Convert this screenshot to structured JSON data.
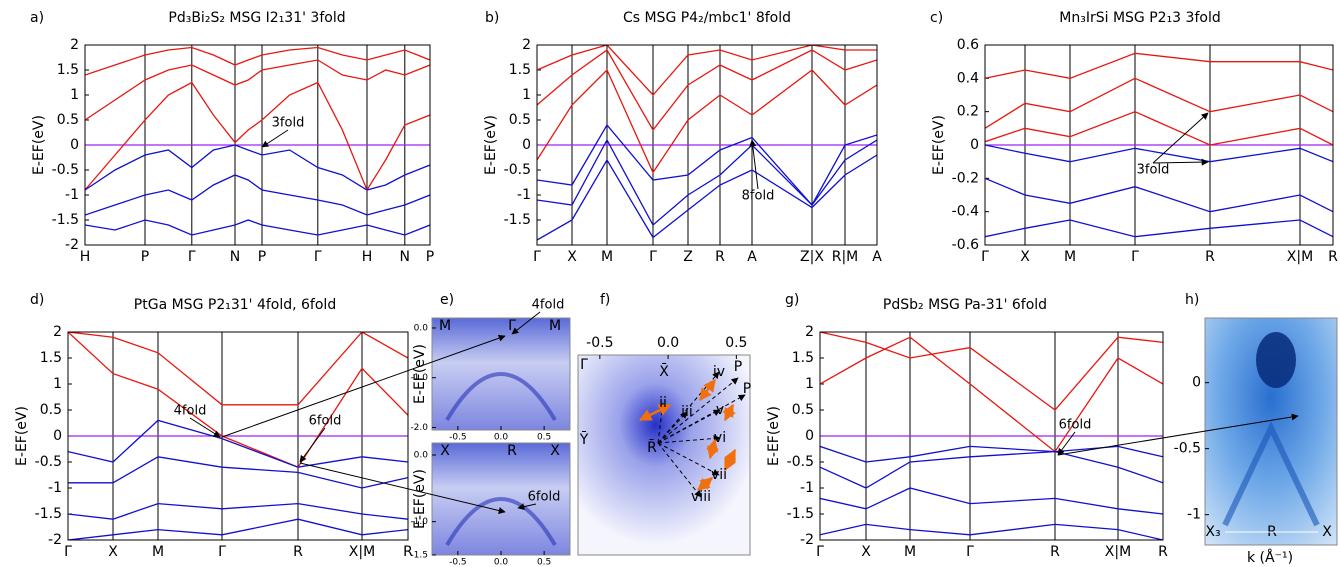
{
  "chart_data": [
    {
      "type": "line",
      "panel": "a)",
      "title": "Pd₃Bi₂S₂ MSG I2₁31' 3fold",
      "ylabel": "E-EF(eV)",
      "x": [
        0,
        0.5,
        1.0,
        1.39,
        1.78,
        2.14,
        2.5,
        2.72,
        2.95,
        3.41,
        3.88,
        4.29,
        4.7,
        5.01,
        5.33,
        5.54,
        5.75
      ],
      "xlim": [
        0,
        5.75
      ],
      "xticks": [
        {
          "value": 0,
          "label": "H"
        },
        {
          "value": 1.0,
          "label": "P"
        },
        {
          "value": 1.78,
          "label": "Γ"
        },
        {
          "value": 2.5,
          "label": "N"
        },
        {
          "value": 2.95,
          "label": "P"
        },
        {
          "value": 3.88,
          "label": "Γ"
        },
        {
          "value": 4.7,
          "label": "H"
        },
        {
          "value": 5.33,
          "label": "N"
        },
        {
          "value": 5.75,
          "label": "P"
        }
      ],
      "ylim": [
        -2,
        2
      ],
      "yticks": [
        -2,
        -1.5,
        -1,
        -0.5,
        0,
        0.5,
        1,
        1.5,
        2
      ],
      "fermi_level": 0,
      "fermi_color": "#a020f0",
      "series": [
        {
          "color": "#e8170f",
          "values": [
            -0.9,
            -0.2,
            0.5,
            1.0,
            1.25,
            0.6,
            0.05,
            0.3,
            0.5,
            1.0,
            1.25,
            0.3,
            -0.9,
            -0.3,
            0.4,
            0.5,
            0.6
          ]
        },
        {
          "color": "#e8170f",
          "values": [
            0.5,
            0.9,
            1.3,
            1.5,
            1.6,
            1.4,
            1.2,
            1.3,
            1.5,
            1.6,
            1.7,
            1.4,
            1.3,
            1.5,
            1.4,
            1.5,
            1.6
          ]
        },
        {
          "color": "#e8170f",
          "values": [
            1.4,
            1.6,
            1.8,
            1.9,
            1.95,
            1.8,
            1.6,
            1.7,
            1.8,
            1.9,
            1.95,
            1.8,
            1.7,
            1.8,
            1.9,
            1.8,
            1.7
          ]
        },
        {
          "color": "#1010d0",
          "values": [
            -0.9,
            -0.5,
            -0.2,
            -0.1,
            -0.45,
            -0.1,
            0,
            -0.1,
            -0.2,
            -0.1,
            -0.45,
            -0.6,
            -0.9,
            -0.8,
            -0.6,
            -0.5,
            -0.4
          ]
        },
        {
          "color": "#1010d0",
          "values": [
            -1.4,
            -1.2,
            -1.0,
            -0.9,
            -1.1,
            -0.8,
            -0.6,
            -0.7,
            -0.9,
            -1.0,
            -1.1,
            -1.2,
            -1.4,
            -1.3,
            -1.2,
            -1.1,
            -1.0
          ]
        },
        {
          "color": "#1010d0",
          "values": [
            -1.6,
            -1.7,
            -1.5,
            -1.6,
            -1.8,
            -1.7,
            -1.6,
            -1.5,
            -1.6,
            -1.7,
            -1.8,
            -1.7,
            -1.6,
            -1.7,
            -1.8,
            -1.7,
            -1.6
          ]
        }
      ],
      "annotations": [
        "3fold"
      ]
    },
    {
      "type": "line",
      "panel": "b)",
      "title": "Cs MSG P4₂/mbc1' 8fold",
      "ylabel": "E-EF(eV)",
      "x": [
        0,
        0.875,
        1.75,
        2.9,
        3.775,
        4.575,
        5.375,
        6.875,
        7.7,
        8.5
      ],
      "xlim": [
        0,
        8.5
      ],
      "xticks": [
        {
          "value": 0,
          "label": "Γ"
        },
        {
          "value": 0.875,
          "label": "X"
        },
        {
          "value": 1.75,
          "label": "M"
        },
        {
          "value": 2.9,
          "label": "Γ"
        },
        {
          "value": 3.775,
          "label": "Z"
        },
        {
          "value": 4.575,
          "label": "R"
        },
        {
          "value": 5.375,
          "label": "A"
        },
        {
          "value": 6.875,
          "label": "Z|X"
        },
        {
          "value": 7.7,
          "label": "R|M"
        },
        {
          "value": 8.5,
          "label": "A"
        }
      ],
      "ylim": [
        -2,
        2
      ],
      "yticks": [
        -1.5,
        -1,
        -0.5,
        0,
        0.5,
        1,
        1.5,
        2
      ],
      "fermi_level": 0,
      "fermi_color": "#a020f0",
      "series": [
        {
          "color": "#e8170f",
          "values": [
            -0.3,
            0.8,
            1.5,
            -0.55,
            0.5,
            1.0,
            0.6,
            1.5,
            0.8,
            1.2
          ]
        },
        {
          "color": "#e8170f",
          "values": [
            0.8,
            1.4,
            1.9,
            0.3,
            1.2,
            1.6,
            1.3,
            1.9,
            1.5,
            1.7
          ]
        },
        {
          "color": "#e8170f",
          "values": [
            1.5,
            1.8,
            2.0,
            1.0,
            1.8,
            1.9,
            1.7,
            2.0,
            1.9,
            1.9
          ]
        },
        {
          "color": "#1010d0",
          "values": [
            -0.7,
            -0.8,
            0.4,
            -0.7,
            -0.6,
            -0.1,
            0.15,
            -1.2,
            0.0,
            0.2
          ]
        },
        {
          "color": "#1010d0",
          "values": [
            -1.1,
            -1.2,
            0.1,
            -1.6,
            -1.0,
            -0.6,
            0.0,
            -1.2,
            -0.3,
            0.1
          ]
        },
        {
          "color": "#1010d0",
          "values": [
            -1.9,
            -1.5,
            -0.3,
            -1.85,
            -1.3,
            -0.8,
            -0.5,
            -1.25,
            -0.6,
            -0.2
          ]
        }
      ],
      "annotations": [
        "8fold"
      ]
    },
    {
      "type": "line",
      "panel": "c)",
      "title": "Mn₃IrSi MSG P2₁3 3fold",
      "ylabel": "E-EF(eV)",
      "x": [
        0,
        1,
        2.125,
        3.75,
        5.625,
        7.875,
        8.7
      ],
      "xlim": [
        0,
        8.7
      ],
      "xticks": [
        {
          "value": 0,
          "label": "Γ"
        },
        {
          "value": 1,
          "label": "X"
        },
        {
          "value": 2.125,
          "label": "M"
        },
        {
          "value": 3.75,
          "label": "Γ"
        },
        {
          "value": 5.625,
          "label": "R"
        },
        {
          "value": 7.875,
          "label": "X|M"
        },
        {
          "value": 8.7,
          "label": "R"
        }
      ],
      "ylim": [
        -0.6,
        0.6
      ],
      "yticks": [
        -0.6,
        -0.4,
        -0.2,
        0,
        0.2,
        0.4,
        0.6
      ],
      "fermi_level": 0,
      "fermi_color": "#a020f0",
      "series": [
        {
          "color": "#e8170f",
          "values": [
            0.4,
            0.45,
            0.4,
            0.55,
            0.5,
            0.5,
            0.45
          ]
        },
        {
          "color": "#e8170f",
          "values": [
            0.1,
            0.25,
            0.2,
            0.4,
            0.2,
            0.3,
            0.2
          ]
        },
        {
          "color": "#e8170f",
          "values": [
            0.02,
            0.1,
            0.05,
            0.2,
            0.0,
            0.1,
            0.0
          ]
        },
        {
          "color": "#1010d0",
          "values": [
            0.0,
            -0.05,
            -0.1,
            -0.02,
            -0.1,
            -0.02,
            -0.1
          ]
        },
        {
          "color": "#1010d0",
          "values": [
            -0.2,
            -0.3,
            -0.35,
            -0.25,
            -0.4,
            -0.3,
            -0.4
          ]
        },
        {
          "color": "#1010d0",
          "values": [
            -0.55,
            -0.5,
            -0.45,
            -0.55,
            -0.5,
            -0.45,
            -0.55
          ]
        }
      ],
      "annotations": [
        "3fold"
      ]
    },
    {
      "type": "line",
      "panel": "d)",
      "title": "PtGa MSG P2₁31' 4fold, 6fold",
      "ylabel": "E-EF(eV)",
      "x": [
        0,
        1.125,
        2.25,
        3.85,
        5.75,
        7.35,
        8.5
      ],
      "xlim": [
        0,
        8.5
      ],
      "xticks": [
        {
          "value": 0,
          "label": "Γ"
        },
        {
          "value": 1.125,
          "label": "X"
        },
        {
          "value": 2.25,
          "label": "M"
        },
        {
          "value": 3.85,
          "label": "Γ"
        },
        {
          "value": 5.75,
          "label": "R"
        },
        {
          "value": 7.35,
          "label": "X|M"
        },
        {
          "value": 8.5,
          "label": "R"
        }
      ],
      "ylim": [
        -2,
        2
      ],
      "yticks": [
        -2,
        -1.5,
        -1,
        -0.5,
        0,
        0.5,
        1,
        1.5,
        2
      ],
      "fermi_level": 0,
      "fermi_color": "#a020f0",
      "series": [
        {
          "color": "#e8170f",
          "values": [
            2.0,
            1.2,
            0.9,
            0.0,
            -0.6,
            1.3,
            0.4
          ]
        },
        {
          "color": "#e8170f",
          "values": [
            2.0,
            1.9,
            1.6,
            0.6,
            0.6,
            2.0,
            1.5
          ]
        },
        {
          "color": "#1010d0",
          "values": [
            -0.3,
            -0.5,
            0.3,
            -0.05,
            -0.6,
            -0.4,
            -0.5
          ]
        },
        {
          "color": "#1010d0",
          "values": [
            -0.9,
            -0.9,
            -0.4,
            -0.6,
            -0.7,
            -1.0,
            -0.8
          ]
        },
        {
          "color": "#1010d0",
          "values": [
            -1.5,
            -1.6,
            -1.3,
            -1.4,
            -1.3,
            -1.5,
            -1.6
          ]
        },
        {
          "color": "#1010d0",
          "values": [
            -2.0,
            -1.9,
            -1.8,
            -1.9,
            -1.6,
            -1.9,
            -1.8
          ]
        }
      ],
      "annotations": [
        "4fold",
        "6fold"
      ]
    },
    {
      "type": "image",
      "panel": "e)",
      "ylabel": "E-EF(eV)",
      "images": [
        {
          "xlim": [
            -0.8,
            0.8
          ],
          "ylim": [
            -2.05,
            0.2
          ],
          "xticks": [
            {
              "value": -0.5,
              "label": "-0.5"
            },
            {
              "value": 0,
              "label": "0.0"
            },
            {
              "value": 0.5,
              "label": "0.5"
            }
          ],
          "yticks": [
            {
              "value": 0,
              "label": "0.0"
            },
            {
              "value": -1,
              "label": "-1.0"
            },
            {
              "value": -2,
              "label": "-2.0"
            }
          ],
          "labels": [
            "M",
            "Γ",
            "M"
          ],
          "annotations": [
            "4fold"
          ]
        },
        {
          "xlim": [
            -0.8,
            0.8
          ],
          "ylim": [
            -1.5,
            0.18
          ],
          "xticks": [
            {
              "value": -0.5,
              "label": "-0.5"
            },
            {
              "value": 0,
              "label": "0.0"
            },
            {
              "value": 0.5,
              "label": "0.5"
            }
          ],
          "yticks": [
            {
              "value": 0,
              "label": "0.0"
            },
            {
              "value": -1,
              "label": "-1.0"
            },
            {
              "value": -1.5,
              "label": "-1.5"
            }
          ],
          "labels": [
            "X",
            "R",
            "X"
          ],
          "annotations": [
            "6fold"
          ]
        }
      ]
    },
    {
      "type": "image",
      "panel": "f)",
      "images": [
        {
          "xlim": [
            -0.66,
            0.6
          ],
          "xticks": [
            {
              "value": -0.5,
              "label": "-0.5"
            },
            {
              "value": 0,
              "label": "0.0"
            },
            {
              "value": 0.5,
              "label": "0.5"
            }
          ],
          "labels": [
            "Γ̄",
            "X̄",
            "Ȳ",
            "R̄",
            "P",
            "P",
            "ii",
            "iii",
            "iv",
            "v",
            "vi",
            "vii",
            "viii"
          ]
        }
      ]
    },
    {
      "type": "line",
      "panel": "g)",
      "title": "PdSb₂ MSG Pa-31' 6fold",
      "ylabel": "E-EF(eV)",
      "x": [
        0,
        1.15,
        2.25,
        3.75,
        5.875,
        7.45,
        8.575
      ],
      "xlim": [
        0,
        8.575
      ],
      "xticks": [
        {
          "value": 0,
          "label": "Γ"
        },
        {
          "value": 1.15,
          "label": "X"
        },
        {
          "value": 2.25,
          "label": "M"
        },
        {
          "value": 3.75,
          "label": "Γ"
        },
        {
          "value": 5.875,
          "label": "R"
        },
        {
          "value": 7.45,
          "label": "X|M"
        },
        {
          "value": 8.575,
          "label": "R"
        }
      ],
      "ylim": [
        -2,
        2
      ],
      "yticks": [
        -2,
        -1.5,
        -1,
        -0.5,
        0,
        0.5,
        1,
        1.5,
        2
      ],
      "fermi_level": 0,
      "fermi_color": "#a020f0",
      "series": [
        {
          "color": "#e8170f",
          "values": [
            1.0,
            1.5,
            1.9,
            1.0,
            -0.3,
            1.5,
            1.0
          ]
        },
        {
          "color": "#e8170f",
          "values": [
            2.0,
            1.8,
            1.5,
            1.7,
            0.5,
            1.9,
            1.8
          ]
        },
        {
          "color": "#1010d0",
          "values": [
            -0.2,
            -0.5,
            -0.4,
            -0.2,
            -0.3,
            -0.2,
            -0.4
          ]
        },
        {
          "color": "#1010d0",
          "values": [
            -0.6,
            -1.0,
            -0.5,
            -0.4,
            -0.3,
            -0.6,
            -0.9
          ]
        },
        {
          "color": "#1010d0",
          "values": [
            -1.2,
            -1.4,
            -1.0,
            -1.3,
            -1.2,
            -1.4,
            -1.5
          ]
        },
        {
          "color": "#1010d0",
          "values": [
            -1.9,
            -1.7,
            -1.8,
            -1.9,
            -1.7,
            -1.8,
            -2.0
          ]
        }
      ],
      "annotations": [
        "6fold"
      ]
    },
    {
      "type": "image",
      "panel": "h)",
      "images": [
        {
          "ylim": [
            -1.23,
            0.49
          ],
          "xlabel": "k (Å⁻¹)",
          "yticks": [
            0,
            -0.5,
            -1
          ],
          "labels": [
            "X₃",
            "R",
            "X"
          ]
        }
      ]
    }
  ]
}
